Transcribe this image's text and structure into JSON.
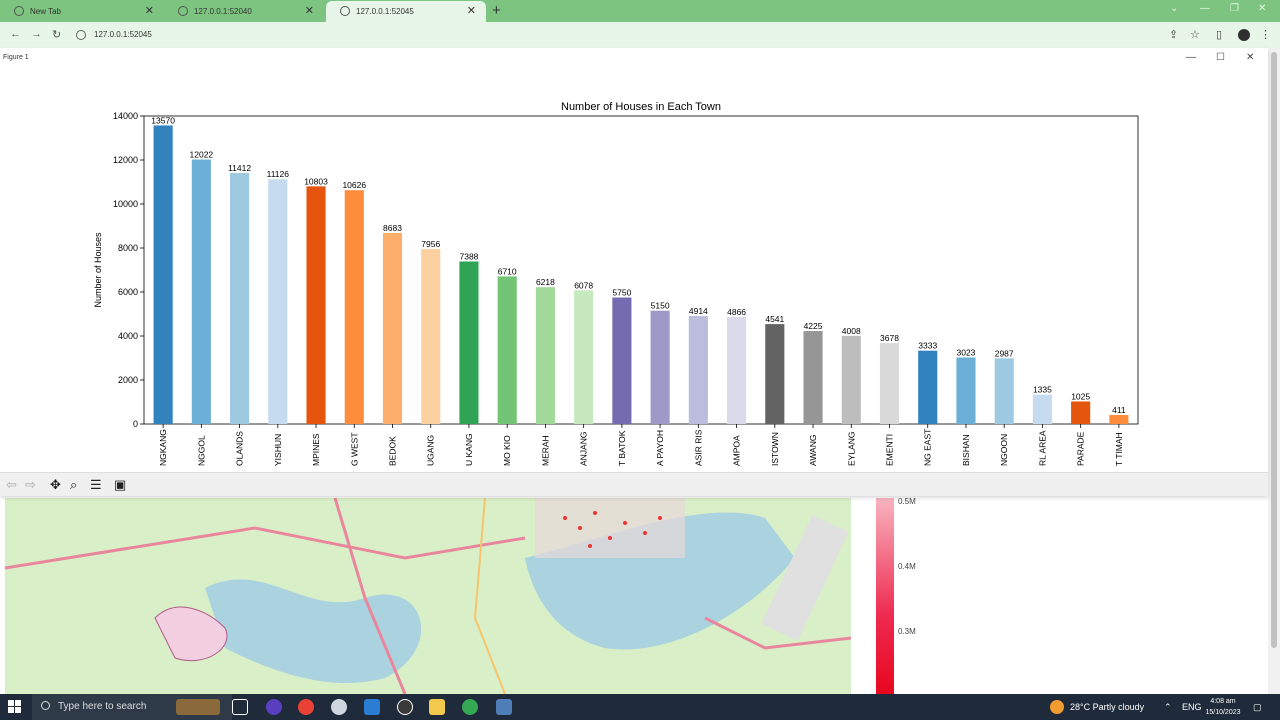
{
  "browser": {
    "tabs": [
      {
        "label": "New Tab",
        "active": false
      },
      {
        "label": "127.0.0.1:52040",
        "active": false
      },
      {
        "label": "127.0.0.1:52045",
        "active": true
      }
    ],
    "url": "127.0.0.1:52045"
  },
  "figure": {
    "window_title": "Figure 1"
  },
  "map_legend": {
    "ticks": [
      "0.5M",
      "0.4M",
      "0.3M"
    ]
  },
  "chart_data": {
    "type": "bar",
    "title": "Number of Houses in Each Town",
    "xlabel": "",
    "ylabel": "Number of Houses",
    "ylim": [
      0,
      14000
    ],
    "yticks": [
      0,
      2000,
      4000,
      6000,
      8000,
      10000,
      12000,
      14000
    ],
    "grid": false,
    "categories": [
      "NGKANG",
      "NGGOL",
      "OLANDS",
      "YISHUN",
      "MPINES",
      "G WEST",
      "BEDOK",
      "UGANG",
      "U KANG",
      "MO KIO",
      "MERAH",
      "ANJANG",
      "T BATOK",
      "A PAYOH",
      "ASIR RIS",
      "AMPOA",
      "ISTOWN",
      "AWANG",
      "EYLANG",
      "EMENTI",
      "NG EAST",
      "BISHAN",
      "NGOON",
      "RL AREA",
      "PARADE",
      "T TIMAH"
    ],
    "values": [
      13570,
      12022,
      11412,
      11126,
      10803,
      10626,
      8683,
      7956,
      7388,
      6710,
      6218,
      6078,
      5750,
      5150,
      4914,
      4866,
      4541,
      4225,
      4008,
      3678,
      3333,
      3023,
      2987,
      1335,
      1025,
      411
    ],
    "colors": [
      "#3182bd",
      "#6baed6",
      "#9ecae1",
      "#c6dbef",
      "#e6550d",
      "#fd8d3c",
      "#fdae6b",
      "#fdd0a2",
      "#31a354",
      "#74c476",
      "#a1d99b",
      "#c7e9c0",
      "#756bb1",
      "#9e9ac8",
      "#bcbddc",
      "#dadaeb",
      "#636363",
      "#969696",
      "#bdbdbd",
      "#d9d9d9",
      "#3182bd",
      "#6baed6",
      "#9ecae1",
      "#c6dbef",
      "#e6550d",
      "#fd8d3c"
    ]
  },
  "taskbar": {
    "search_placeholder": "Type here to search",
    "weather": "28°C  Partly cloudy",
    "language": "ENG",
    "time": "4:08 am",
    "date": "15/10/2023"
  }
}
